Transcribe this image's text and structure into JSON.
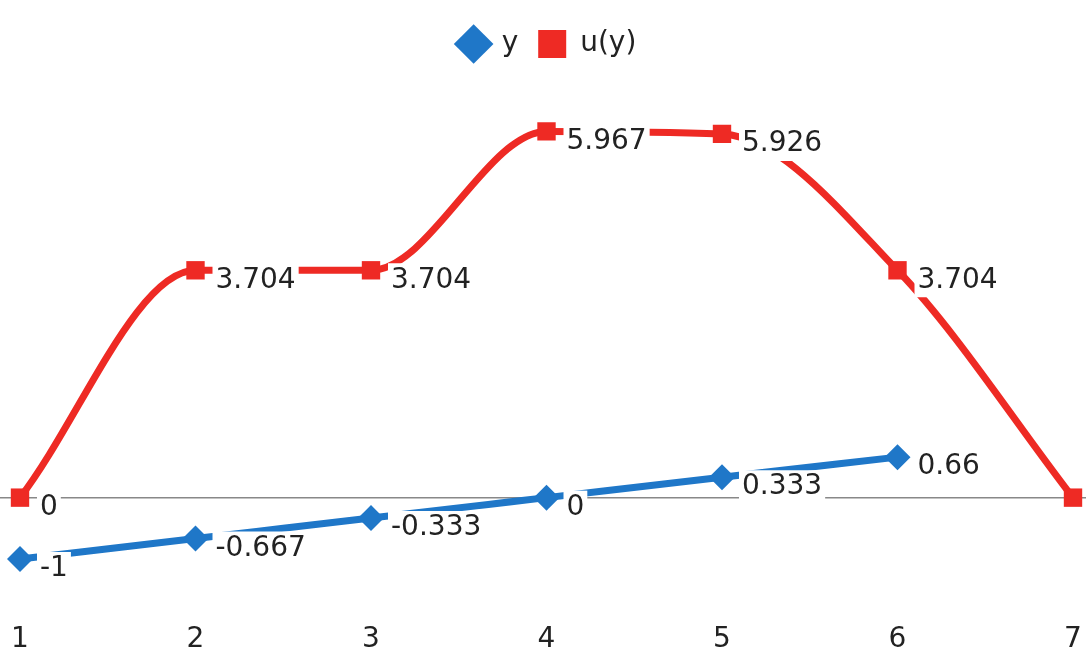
{
  "chart_data": {
    "type": "line",
    "categories": [
      "1",
      "2",
      "3",
      "4",
      "5",
      "6",
      "7"
    ],
    "series": [
      {
        "name": "y",
        "color": "#1f77c8",
        "marker": "diamond",
        "values": [
          -1,
          -0.667,
          -0.333,
          0,
          0.333,
          0.66,
          null
        ],
        "value_labels": [
          "-1",
          "-0.667",
          "-0.333",
          "0",
          "0.333",
          "0.66",
          null
        ]
      },
      {
        "name": "u(y)",
        "color": "#ee2a24",
        "marker": "square",
        "values": [
          0,
          3.704,
          3.704,
          5.967,
          5.926,
          3.704,
          0
        ],
        "value_labels": [
          "0",
          "3.704",
          "3.704",
          "5.967",
          "5.926",
          "3.704",
          null
        ]
      }
    ],
    "tick_labels": "x",
    "grid": false,
    "legend": "top",
    "ref_lines": [
      {
        "axis": "y",
        "value": 0,
        "color": "#888888"
      }
    ]
  }
}
